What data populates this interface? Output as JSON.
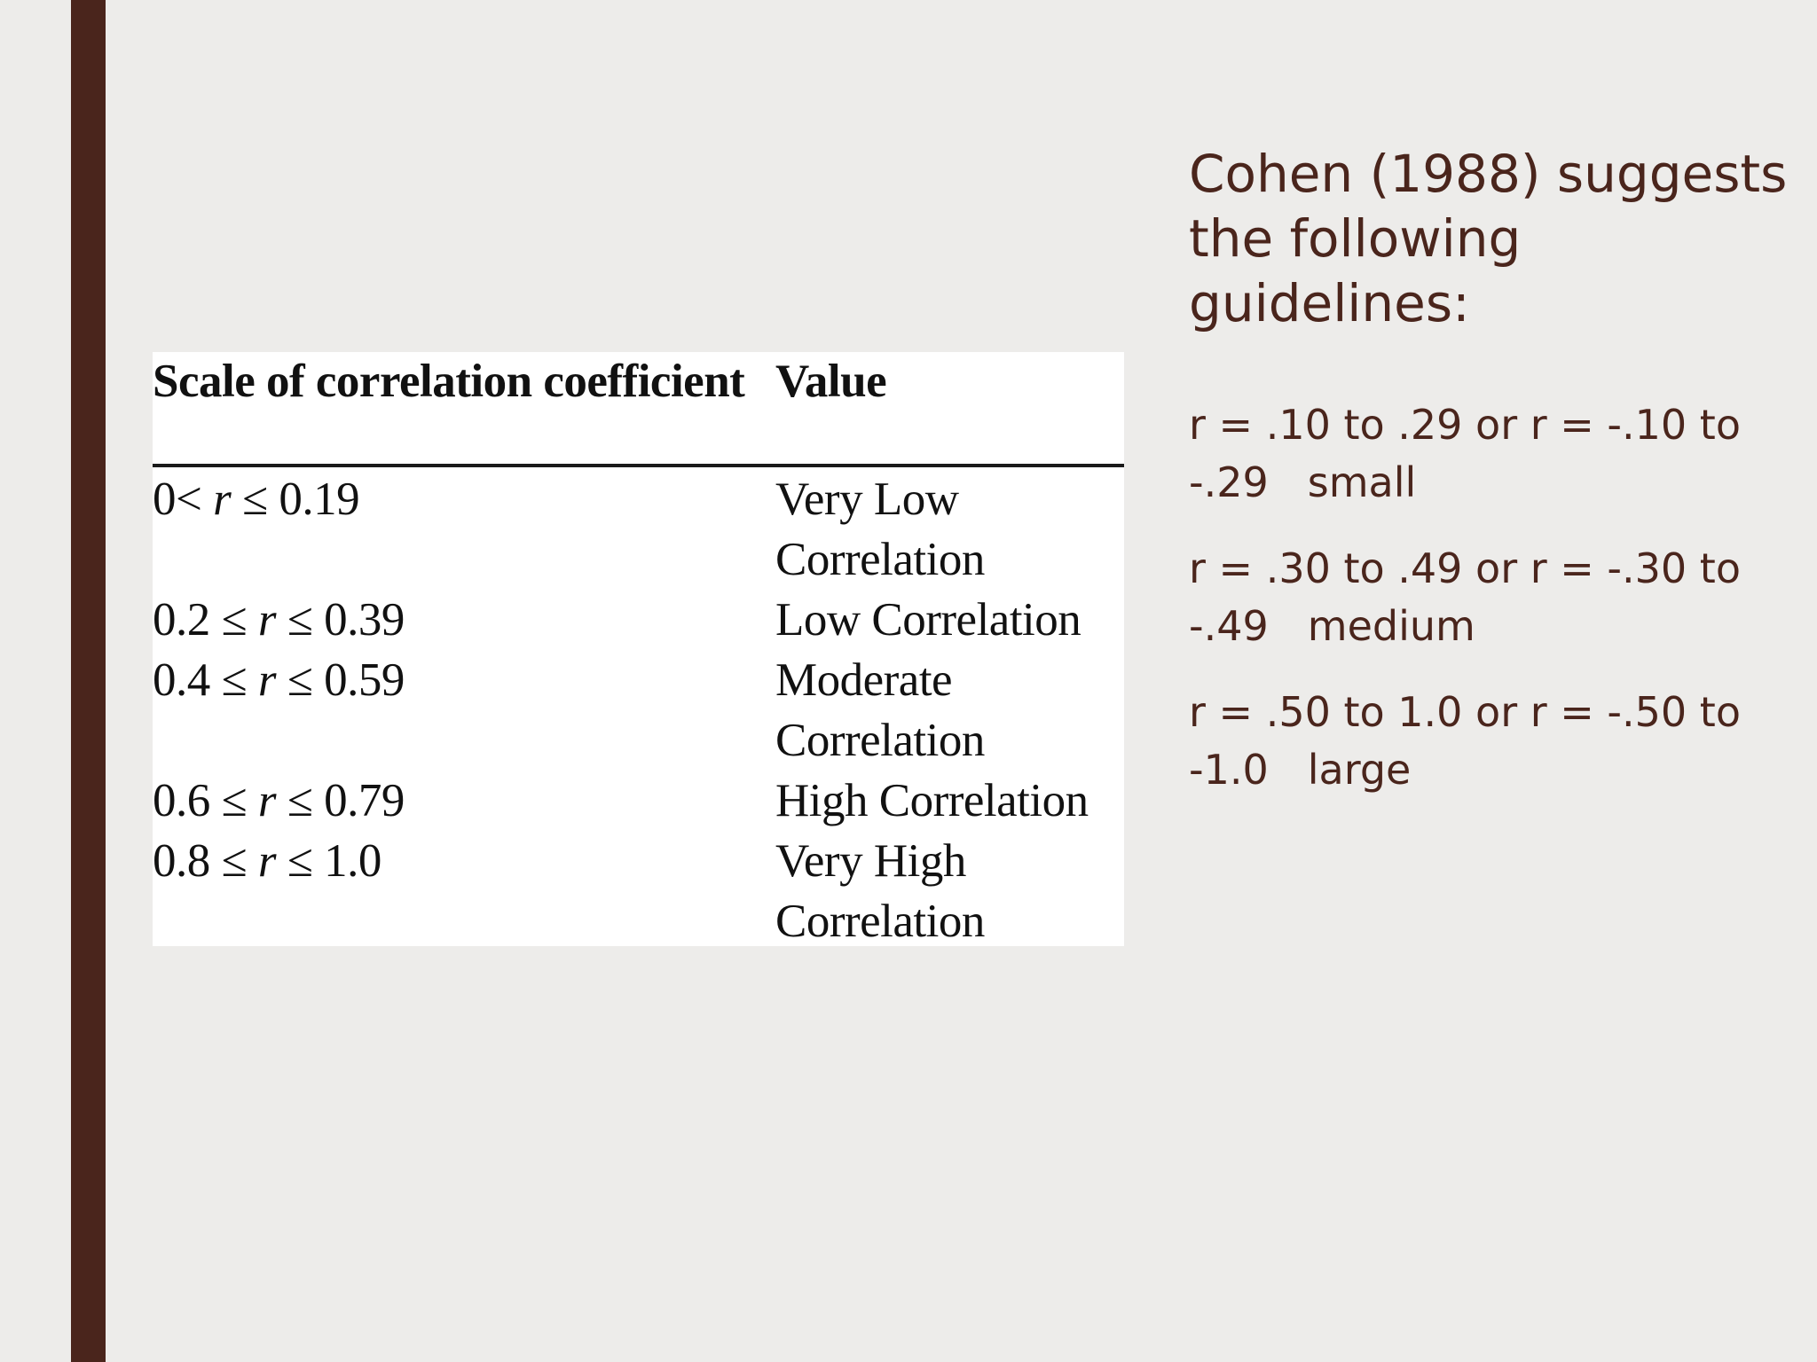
{
  "theme": {
    "accent_color": "#4a251c",
    "text_color": "#4a251c",
    "background": "#edecea"
  },
  "table": {
    "headers": [
      "Scale of correlation coefficient",
      "Value"
    ],
    "rows": [
      {
        "scale_left": "0<",
        "scale_var": "r",
        "scale_right": "≤ 0.19",
        "value": "Very Low Correlation"
      },
      {
        "scale_left": "0.2 ≤",
        "scale_var": "r",
        "scale_right": "≤ 0.39",
        "value": "Low Correlation"
      },
      {
        "scale_left": "0.4 ≤",
        "scale_var": "r",
        "scale_right": "≤ 0.59",
        "value": "Moderate Correlation"
      },
      {
        "scale_left": "0.6 ≤",
        "scale_var": "r",
        "scale_right": "≤ 0.79",
        "value": "High Correlation"
      },
      {
        "scale_left": "0.8 ≤",
        "scale_var": "r",
        "scale_right": "≤ 1.0",
        "value": "Very High Correlation"
      }
    ]
  },
  "side": {
    "heading": "Cohen (1988) suggests the following guidelines:",
    "guidelines": [
      {
        "range": "r = .10 to .29 or r = -.10 to -.29",
        "label": "small"
      },
      {
        "range": "r = .30 to .49 or r = -.30 to -.49",
        "label": "medium"
      },
      {
        "range": "r = .50 to 1.0 or r = -.50 to -1.0",
        "label": "large"
      }
    ]
  }
}
